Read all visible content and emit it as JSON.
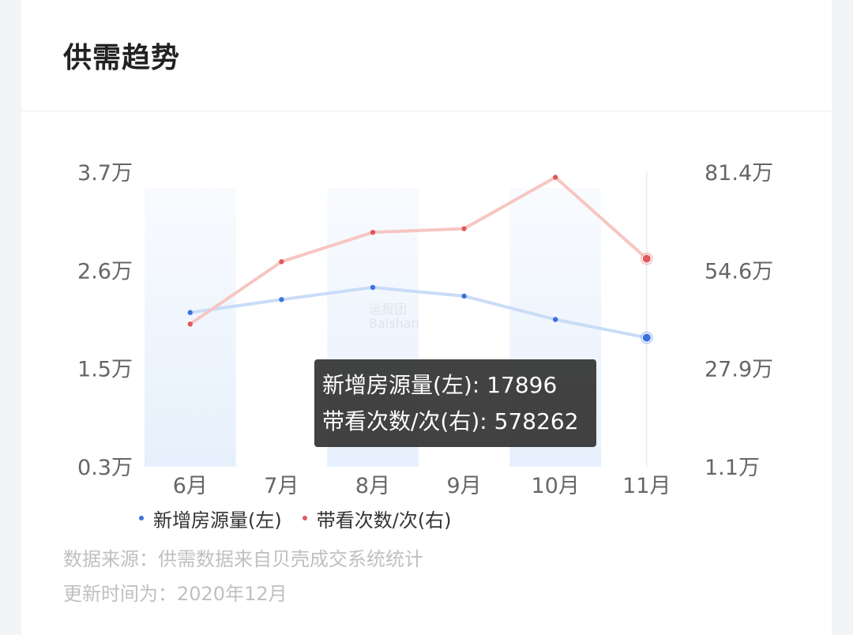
{
  "card": {
    "title": "供需趋势",
    "source_note": "数据来源：供需数据来自贝壳成交系统统计",
    "update_note": "更新时间为：2020年12月",
    "watermark_line1": "运报团",
    "watermark_line2": "Baishan"
  },
  "tooltip": {
    "line1_label": "新增房源量(左): ",
    "line1_value": "17896",
    "line2_label": "带看次数/次(右): ",
    "line2_value": "578262"
  },
  "colors": {
    "blue": "#3a72e0",
    "red": "#e05a5a",
    "blue_line": "#c9dcf7",
    "red_line": "#f7c6c2",
    "band": "#e6f0fc"
  },
  "chart_data": {
    "type": "line",
    "categories": [
      "6月",
      "7月",
      "8月",
      "9月",
      "10月",
      "11月"
    ],
    "highlighted_category": "11月",
    "left_axis": {
      "ticks": [
        "3.7万",
        "2.6万",
        "1.5万",
        "0.3万"
      ],
      "range": [
        3000,
        37000
      ]
    },
    "right_axis": {
      "ticks": [
        "81.4万",
        "54.6万",
        "27.9万",
        "1.1万"
      ],
      "range": [
        11000,
        814000
      ]
    },
    "series": [
      {
        "name": "新增房源量(左)",
        "axis": "left",
        "color": "#3a72e0",
        "values": [
          20800,
          22300,
          23700,
          22700,
          20000,
          17896
        ]
      },
      {
        "name": "带看次数/次(右)",
        "axis": "right",
        "color": "#e05a5a",
        "values": [
          400000,
          570000,
          650000,
          660000,
          800000,
          578262
        ]
      }
    ],
    "legend_position": "bottom-left"
  }
}
